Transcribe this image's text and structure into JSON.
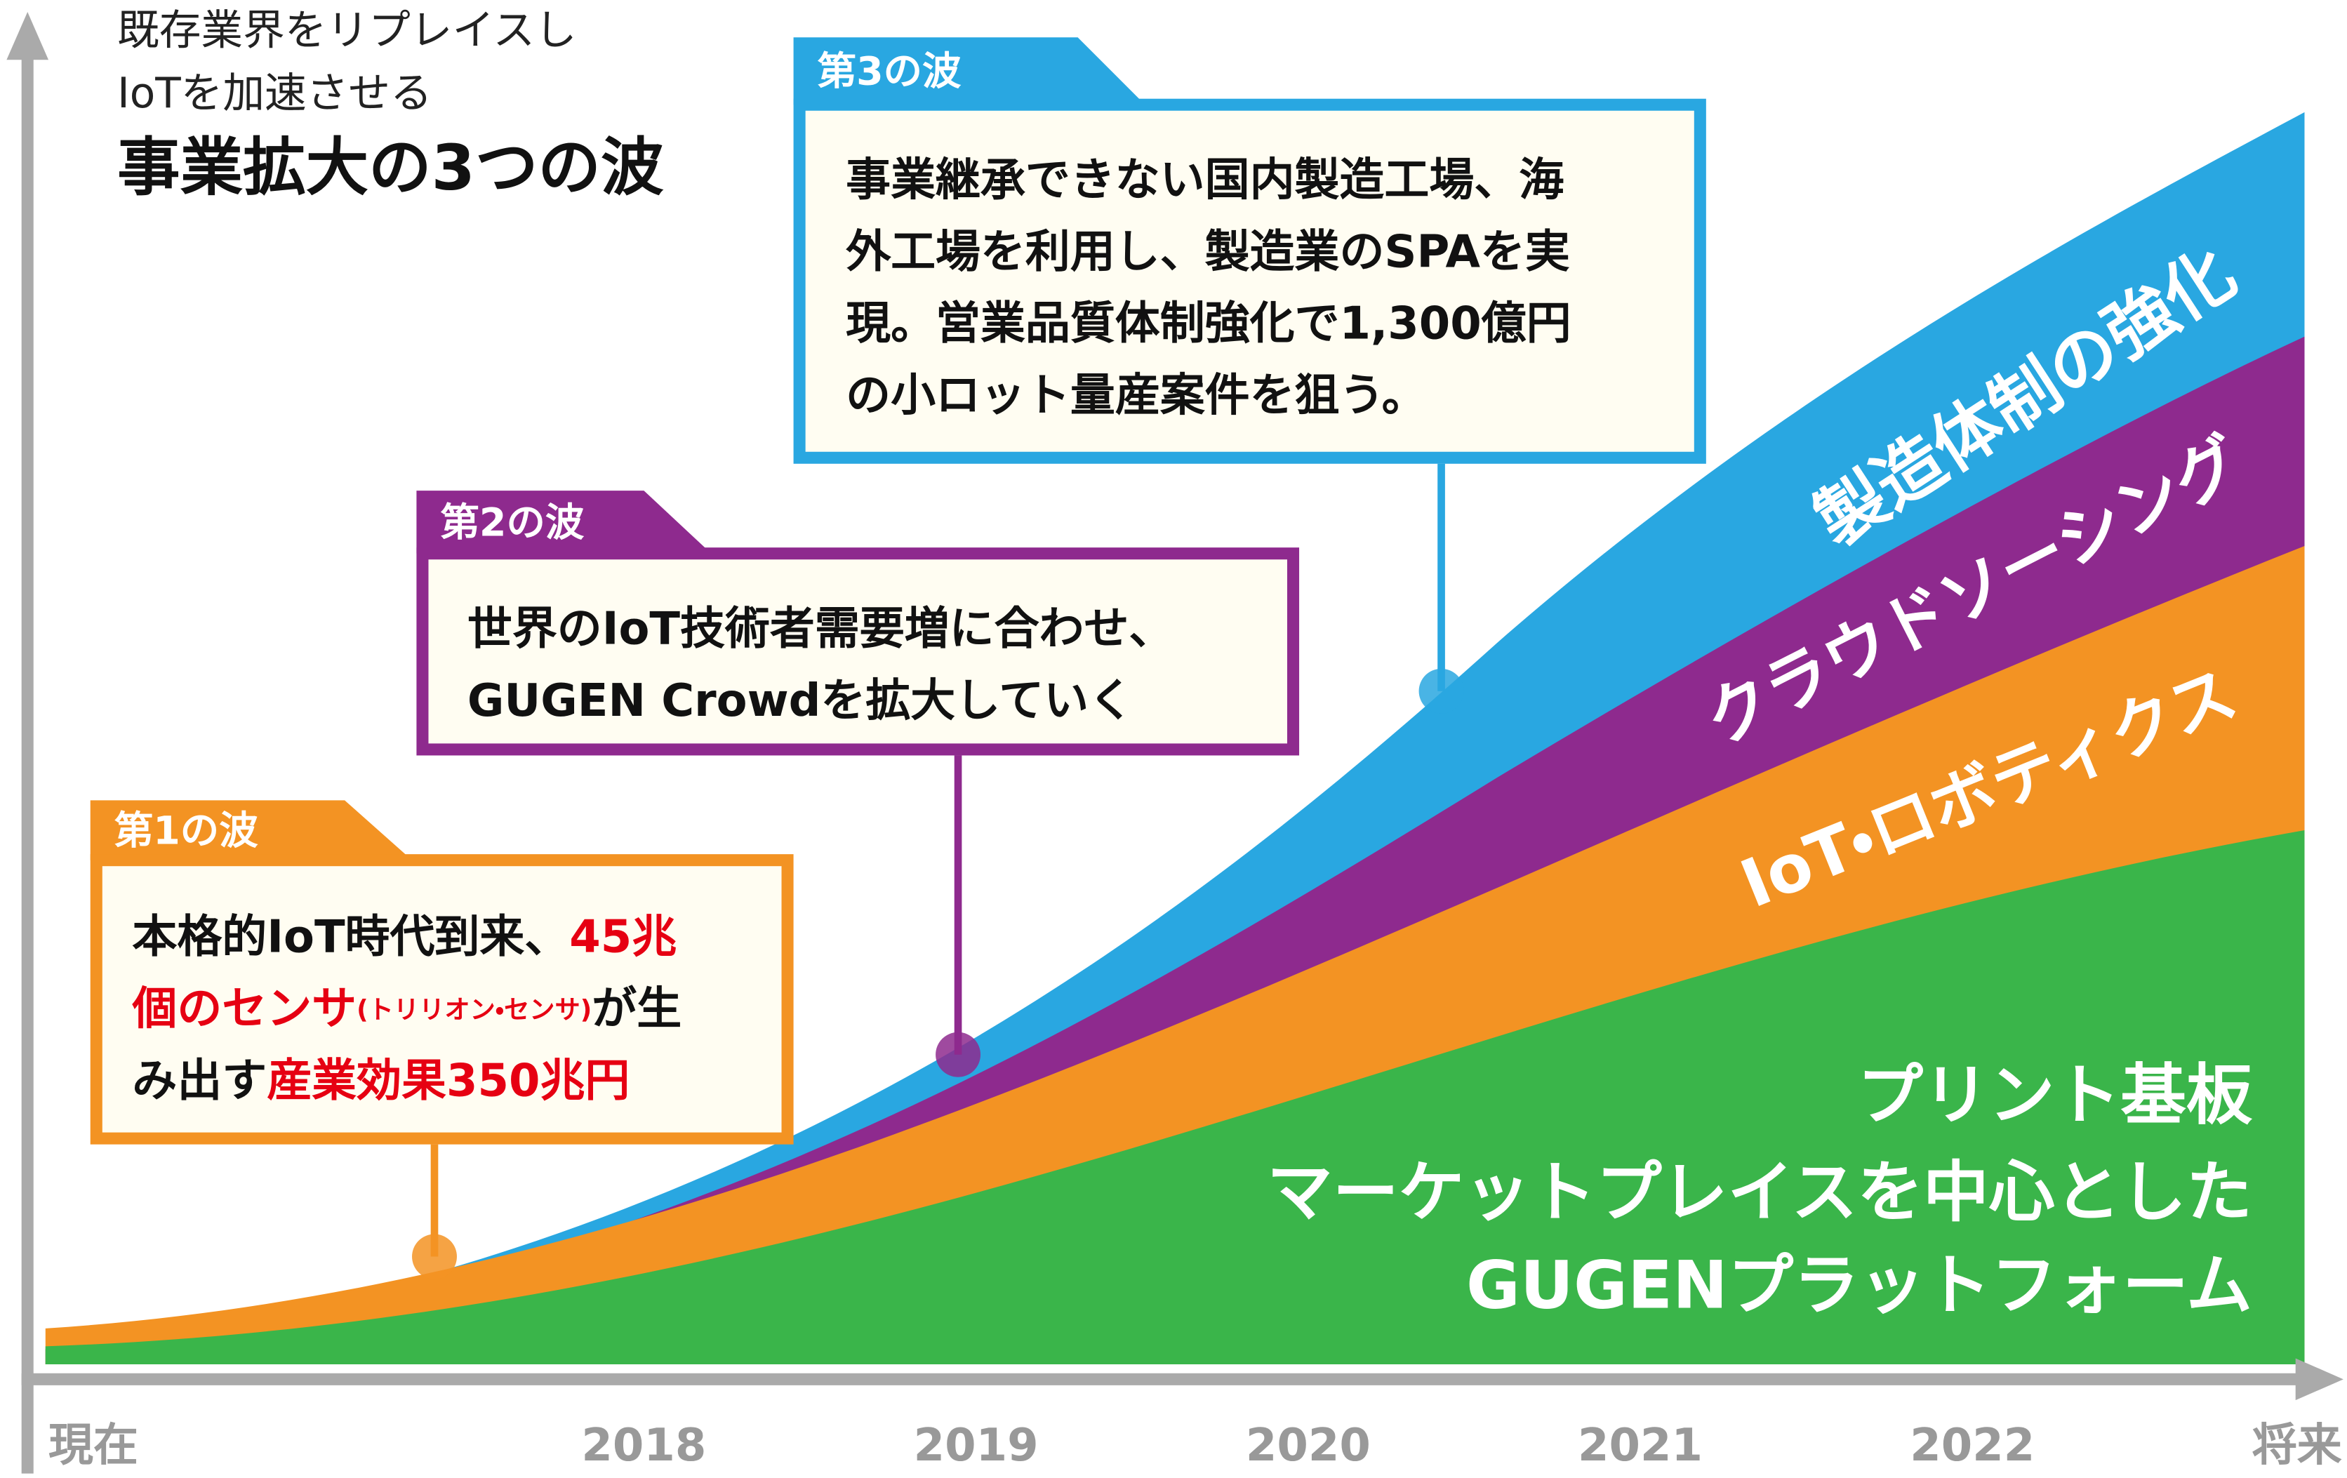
{
  "header": {
    "line1": "既存業界をリプレイスし",
    "line2": "IoTを加速させる",
    "title": "事業拡大の3つの波"
  },
  "waves": [
    {
      "label": "第1の波",
      "color": "#f39323",
      "lines": [
        [
          {
            "text": "本格的IoT時代到来、"
          },
          {
            "text": "45兆",
            "color": "#e60012"
          }
        ],
        [
          {
            "text": "個のセンサ",
            "color": "#e60012"
          },
          {
            "text": "(トリリオン・センサ)",
            "color": "#e60012",
            "small": true
          },
          {
            "text": "が生"
          }
        ],
        [
          {
            "text": "み出す"
          },
          {
            "text": "産業効果350兆円",
            "color": "#e60012"
          }
        ]
      ]
    },
    {
      "label": "第2の波",
      "color": "#8e2a8e",
      "lines": [
        [
          {
            "text": "世界のIoT技術者需要増に合わせ、"
          }
        ],
        [
          {
            "text": "GUGEN Crowdを拡大していく"
          }
        ]
      ]
    },
    {
      "label": "第3の波",
      "color": "#29a7e1",
      "lines": [
        [
          {
            "text": "事業継承できない国内製造工場、海"
          }
        ],
        [
          {
            "text": "外工場を利用し、製造業のSPAを実"
          }
        ],
        [
          {
            "text": "現。営業品質体制強化で1,300億円"
          }
        ],
        [
          {
            "text": "の小ロット量産案件を狙う。"
          }
        ]
      ]
    }
  ],
  "areas": {
    "manufacturing": "製造体制の強化",
    "crowdsourcing": "クラウドソーシング",
    "iot": "IoT・ロボティクス",
    "platform": [
      "プリント基板",
      "マーケットプレイスを中心とした",
      "GUGENプラットフォーム"
    ]
  },
  "x_axis": [
    "現在",
    "2018",
    "2019",
    "2020",
    "2021",
    "2022",
    "将来"
  ]
}
